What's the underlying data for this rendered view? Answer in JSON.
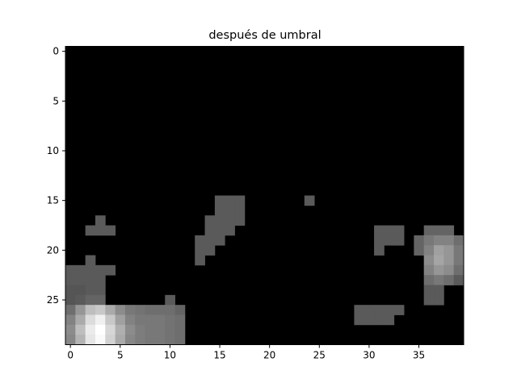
{
  "chart_data": {
    "type": "heatmap",
    "title": "después de umbral",
    "xlabel": "",
    "ylabel": "",
    "colormap": "gray",
    "grid": false,
    "ncols": 40,
    "nrows": 30,
    "xticks": [
      0,
      5,
      10,
      15,
      20,
      25,
      30,
      35
    ],
    "yticks": [
      0,
      5,
      10,
      15,
      20,
      25
    ],
    "xlim": [
      -0.5,
      39.5
    ],
    "ylim": [
      29.5,
      -0.5
    ],
    "colors": {
      "background": "#000000",
      "frame": "#000000",
      "text": "#000000"
    },
    "cells": [
      {
        "r": 15,
        "c": 15,
        "v": 90
      },
      {
        "r": 15,
        "c": 16,
        "v": 90
      },
      {
        "r": 15,
        "c": 17,
        "v": 90
      },
      {
        "r": 15,
        "c": 24,
        "v": 90
      },
      {
        "r": 16,
        "c": 15,
        "v": 90
      },
      {
        "r": 16,
        "c": 16,
        "v": 90
      },
      {
        "r": 16,
        "c": 17,
        "v": 90
      },
      {
        "r": 17,
        "c": 3,
        "v": 90
      },
      {
        "r": 17,
        "c": 14,
        "v": 90
      },
      {
        "r": 17,
        "c": 15,
        "v": 90
      },
      {
        "r": 17,
        "c": 16,
        "v": 90
      },
      {
        "r": 17,
        "c": 17,
        "v": 90
      },
      {
        "r": 18,
        "c": 2,
        "v": 90
      },
      {
        "r": 18,
        "c": 3,
        "v": 90
      },
      {
        "r": 18,
        "c": 4,
        "v": 90
      },
      {
        "r": 18,
        "c": 14,
        "v": 90
      },
      {
        "r": 18,
        "c": 15,
        "v": 90
      },
      {
        "r": 18,
        "c": 16,
        "v": 90
      },
      {
        "r": 18,
        "c": 31,
        "v": 90
      },
      {
        "r": 18,
        "c": 32,
        "v": 90
      },
      {
        "r": 18,
        "c": 33,
        "v": 90
      },
      {
        "r": 18,
        "c": 36,
        "v": 100
      },
      {
        "r": 18,
        "c": 37,
        "v": 100
      },
      {
        "r": 18,
        "c": 38,
        "v": 100
      },
      {
        "r": 19,
        "c": 13,
        "v": 90
      },
      {
        "r": 19,
        "c": 14,
        "v": 90
      },
      {
        "r": 19,
        "c": 15,
        "v": 90
      },
      {
        "r": 19,
        "c": 31,
        "v": 90
      },
      {
        "r": 19,
        "c": 32,
        "v": 90
      },
      {
        "r": 19,
        "c": 33,
        "v": 90
      },
      {
        "r": 19,
        "c": 35,
        "v": 100
      },
      {
        "r": 19,
        "c": 36,
        "v": 120
      },
      {
        "r": 19,
        "c": 37,
        "v": 130
      },
      {
        "r": 19,
        "c": 38,
        "v": 130
      },
      {
        "r": 19,
        "c": 39,
        "v": 110
      },
      {
        "r": 20,
        "c": 13,
        "v": 90
      },
      {
        "r": 20,
        "c": 14,
        "v": 90
      },
      {
        "r": 20,
        "c": 31,
        "v": 90
      },
      {
        "r": 20,
        "c": 35,
        "v": 100
      },
      {
        "r": 20,
        "c": 36,
        "v": 130
      },
      {
        "r": 20,
        "c": 37,
        "v": 160
      },
      {
        "r": 20,
        "c": 38,
        "v": 150
      },
      {
        "r": 20,
        "c": 39,
        "v": 120
      },
      {
        "r": 21,
        "c": 2,
        "v": 90
      },
      {
        "r": 21,
        "c": 13,
        "v": 90
      },
      {
        "r": 21,
        "c": 36,
        "v": 140
      },
      {
        "r": 21,
        "c": 37,
        "v": 165
      },
      {
        "r": 21,
        "c": 38,
        "v": 150
      },
      {
        "r": 21,
        "c": 39,
        "v": 120
      },
      {
        "r": 22,
        "c": 0,
        "v": 90
      },
      {
        "r": 22,
        "c": 1,
        "v": 90
      },
      {
        "r": 22,
        "c": 2,
        "v": 90
      },
      {
        "r": 22,
        "c": 3,
        "v": 90
      },
      {
        "r": 22,
        "c": 4,
        "v": 90
      },
      {
        "r": 22,
        "c": 36,
        "v": 130
      },
      {
        "r": 22,
        "c": 37,
        "v": 150
      },
      {
        "r": 22,
        "c": 38,
        "v": 140
      },
      {
        "r": 22,
        "c": 39,
        "v": 110
      },
      {
        "r": 23,
        "c": 0,
        "v": 90
      },
      {
        "r": 23,
        "c": 1,
        "v": 90
      },
      {
        "r": 23,
        "c": 2,
        "v": 90
      },
      {
        "r": 23,
        "c": 3,
        "v": 90
      },
      {
        "r": 23,
        "c": 36,
        "v": 110
      },
      {
        "r": 23,
        "c": 37,
        "v": 120
      },
      {
        "r": 23,
        "c": 38,
        "v": 110
      },
      {
        "r": 23,
        "c": 39,
        "v": 90
      },
      {
        "r": 24,
        "c": 0,
        "v": 85
      },
      {
        "r": 24,
        "c": 1,
        "v": 85
      },
      {
        "r": 24,
        "c": 2,
        "v": 90
      },
      {
        "r": 24,
        "c": 3,
        "v": 90
      },
      {
        "r": 24,
        "c": 36,
        "v": 90
      },
      {
        "r": 24,
        "c": 37,
        "v": 90
      },
      {
        "r": 25,
        "c": 0,
        "v": 85
      },
      {
        "r": 25,
        "c": 1,
        "v": 90
      },
      {
        "r": 25,
        "c": 2,
        "v": 100
      },
      {
        "r": 25,
        "c": 3,
        "v": 100
      },
      {
        "r": 25,
        "c": 10,
        "v": 90
      },
      {
        "r": 25,
        "c": 36,
        "v": 90
      },
      {
        "r": 25,
        "c": 37,
        "v": 90
      },
      {
        "r": 26,
        "c": 0,
        "v": 110
      },
      {
        "r": 26,
        "c": 1,
        "v": 150
      },
      {
        "r": 26,
        "c": 2,
        "v": 190
      },
      {
        "r": 26,
        "c": 3,
        "v": 200
      },
      {
        "r": 26,
        "c": 4,
        "v": 170
      },
      {
        "r": 26,
        "c": 5,
        "v": 140
      },
      {
        "r": 26,
        "c": 6,
        "v": 120
      },
      {
        "r": 26,
        "c": 7,
        "v": 115
      },
      {
        "r": 26,
        "c": 8,
        "v": 110
      },
      {
        "r": 26,
        "c": 9,
        "v": 110
      },
      {
        "r": 26,
        "c": 10,
        "v": 110
      },
      {
        "r": 26,
        "c": 11,
        "v": 100
      },
      {
        "r": 26,
        "c": 29,
        "v": 90
      },
      {
        "r": 26,
        "c": 30,
        "v": 90
      },
      {
        "r": 26,
        "c": 31,
        "v": 90
      },
      {
        "r": 26,
        "c": 32,
        "v": 90
      },
      {
        "r": 26,
        "c": 33,
        "v": 90
      },
      {
        "r": 27,
        "c": 0,
        "v": 130
      },
      {
        "r": 27,
        "c": 1,
        "v": 170
      },
      {
        "r": 27,
        "c": 2,
        "v": 220
      },
      {
        "r": 27,
        "c": 3,
        "v": 240
      },
      {
        "r": 27,
        "c": 4,
        "v": 200
      },
      {
        "r": 27,
        "c": 5,
        "v": 160
      },
      {
        "r": 27,
        "c": 6,
        "v": 130
      },
      {
        "r": 27,
        "c": 7,
        "v": 120
      },
      {
        "r": 27,
        "c": 8,
        "v": 120
      },
      {
        "r": 27,
        "c": 9,
        "v": 120
      },
      {
        "r": 27,
        "c": 10,
        "v": 115
      },
      {
        "r": 27,
        "c": 11,
        "v": 110
      },
      {
        "r": 27,
        "c": 29,
        "v": 90
      },
      {
        "r": 27,
        "c": 30,
        "v": 90
      },
      {
        "r": 27,
        "c": 31,
        "v": 90
      },
      {
        "r": 27,
        "c": 32,
        "v": 90
      },
      {
        "r": 28,
        "c": 0,
        "v": 140
      },
      {
        "r": 28,
        "c": 1,
        "v": 190
      },
      {
        "r": 28,
        "c": 2,
        "v": 235
      },
      {
        "r": 28,
        "c": 3,
        "v": 255
      },
      {
        "r": 28,
        "c": 4,
        "v": 215
      },
      {
        "r": 28,
        "c": 5,
        "v": 175
      },
      {
        "r": 28,
        "c": 6,
        "v": 140
      },
      {
        "r": 28,
        "c": 7,
        "v": 125
      },
      {
        "r": 28,
        "c": 8,
        "v": 120
      },
      {
        "r": 28,
        "c": 9,
        "v": 120
      },
      {
        "r": 28,
        "c": 10,
        "v": 115
      },
      {
        "r": 28,
        "c": 11,
        "v": 110
      },
      {
        "r": 29,
        "c": 0,
        "v": 135
      },
      {
        "r": 29,
        "c": 1,
        "v": 180
      },
      {
        "r": 29,
        "c": 2,
        "v": 230
      },
      {
        "r": 29,
        "c": 3,
        "v": 250
      },
      {
        "r": 29,
        "c": 4,
        "v": 210
      },
      {
        "r": 29,
        "c": 5,
        "v": 170
      },
      {
        "r": 29,
        "c": 6,
        "v": 135
      },
      {
        "r": 29,
        "c": 7,
        "v": 125
      },
      {
        "r": 29,
        "c": 8,
        "v": 120
      },
      {
        "r": 29,
        "c": 9,
        "v": 120
      },
      {
        "r": 29,
        "c": 10,
        "v": 115
      },
      {
        "r": 29,
        "c": 11,
        "v": 110
      }
    ]
  }
}
